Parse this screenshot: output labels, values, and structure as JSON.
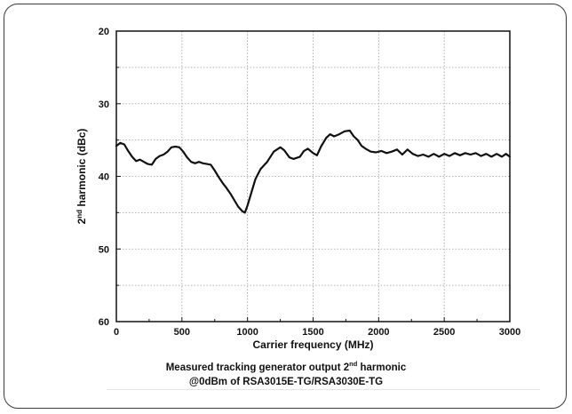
{
  "chart_data": {
    "type": "line",
    "xlabel": "Carrier frequency (MHz)",
    "ylabel_prefix": "2",
    "ylabel_sup": "nd",
    "ylabel_suffix": " harmonic (dBc)",
    "xlim": [
      0,
      3000
    ],
    "ylim": [
      20,
      60
    ],
    "y_inverted": true,
    "x_ticks": [
      0,
      500,
      1000,
      1500,
      2000,
      2500,
      3000
    ],
    "y_ticks": [
      20,
      30,
      40,
      50,
      60
    ],
    "grid": true,
    "grid_style": "dotted",
    "legend": "none",
    "line_color": "#111111",
    "series": [
      {
        "x": [
          0,
          30,
          60,
          90,
          120,
          150,
          180,
          210,
          240,
          270,
          300,
          330,
          360,
          390,
          420,
          450,
          480,
          510,
          540,
          570,
          600,
          630,
          660,
          690,
          720,
          750,
          780,
          810,
          840,
          870,
          900,
          930,
          960,
          980,
          1000,
          1030,
          1060,
          1100,
          1150,
          1200,
          1250,
          1280,
          1320,
          1350,
          1400,
          1430,
          1460,
          1500,
          1530,
          1560,
          1600,
          1630,
          1660,
          1700,
          1740,
          1780,
          1810,
          1840,
          1870,
          1900,
          1940,
          1980,
          2020,
          2060,
          2100,
          2140,
          2180,
          2220,
          2260,
          2300,
          2340,
          2380,
          2420,
          2460,
          2500,
          2540,
          2580,
          2620,
          2660,
          2700,
          2740,
          2780,
          2820,
          2860,
          2900,
          2940,
          2970,
          3000
        ],
        "y": [
          35.8,
          35.4,
          35.6,
          36.5,
          37.3,
          37.9,
          37.7,
          38.0,
          38.3,
          38.4,
          37.6,
          37.2,
          37.0,
          36.6,
          36.0,
          35.9,
          36.0,
          36.6,
          37.4,
          38.0,
          38.2,
          38.0,
          38.2,
          38.3,
          38.4,
          39.2,
          40.1,
          40.9,
          41.6,
          42.4,
          43.3,
          44.2,
          44.8,
          45.0,
          44.0,
          42.2,
          40.4,
          39.0,
          38.0,
          36.6,
          36.0,
          36.4,
          37.4,
          37.6,
          37.3,
          36.5,
          36.2,
          36.8,
          37.1,
          35.9,
          34.7,
          34.2,
          34.5,
          34.2,
          33.8,
          33.7,
          34.5,
          35.0,
          35.8,
          36.2,
          36.6,
          36.7,
          36.5,
          36.8,
          36.6,
          36.3,
          37.0,
          36.3,
          36.9,
          37.2,
          37.0,
          37.3,
          36.9,
          37.3,
          36.9,
          37.2,
          36.8,
          37.1,
          36.8,
          37.0,
          36.8,
          37.2,
          36.9,
          37.3,
          36.9,
          37.3,
          36.9,
          37.3
        ]
      }
    ]
  },
  "caption": {
    "line1_prefix": "Measured tracking generator output 2",
    "line1_sup": "nd",
    "line1_suffix": " harmonic",
    "line2": "@0dBm of RSA3015E-TG/RSA3030E-TG"
  }
}
